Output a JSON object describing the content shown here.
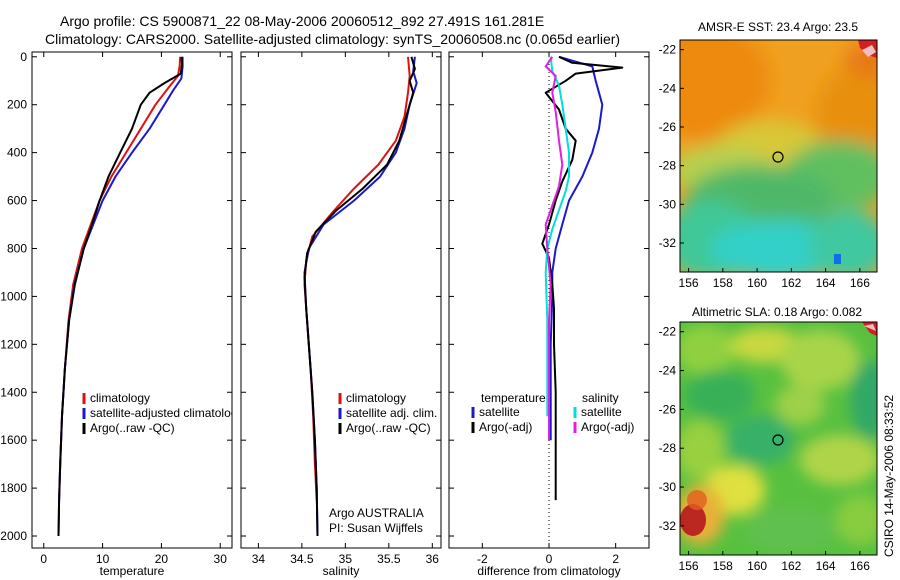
{
  "header": {
    "line1": "Argo profile: CS 5900871_22 08-May-2006 20060512_892 27.491S 161.281E",
    "line2": "Climatology: CARS2000. Satellite-adjusted climatology: synTS_20060508.nc (0.065d earlier)"
  },
  "credit": "CSIRO 14-May-2006 08:33:52",
  "colors": {
    "red": "#e01010",
    "blue": "#1a1acc",
    "black": "#000000",
    "cyan": "#00dede",
    "magenta": "#e020e0"
  },
  "chart_data": [
    {
      "type": "line",
      "panel": "temperature",
      "xlabel": "temperature",
      "ylabel": "",
      "xlim": [
        -2,
        32
      ],
      "ylim": [
        2050,
        -20
      ],
      "y_reversed": true,
      "xticks": [
        0,
        10,
        20,
        30
      ],
      "yticks": [
        0,
        200,
        400,
        600,
        800,
        1000,
        1200,
        1400,
        1600,
        1800,
        2000
      ],
      "legend": [
        "climatology",
        "satellite-adjusted climatology",
        "Argo(..raw -QC)"
      ],
      "series": [
        {
          "name": "climatology",
          "color": "red",
          "points": [
            [
              23.2,
              0
            ],
            [
              23.1,
              40
            ],
            [
              22.8,
              80
            ],
            [
              21.5,
              120
            ],
            [
              19.0,
              200
            ],
            [
              16.5,
              300
            ],
            [
              14.0,
              400
            ],
            [
              11.5,
              500
            ],
            [
              9.5,
              600
            ],
            [
              8.0,
              700
            ],
            [
              6.5,
              800
            ],
            [
              5.0,
              950
            ],
            [
              4.2,
              1100
            ],
            [
              3.6,
              1300
            ],
            [
              3.1,
              1500
            ],
            [
              2.8,
              1700
            ],
            [
              2.6,
              1850
            ]
          ]
        },
        {
          "name": "satellite-adjusted climatology",
          "color": "blue",
          "points": [
            [
              23.6,
              0
            ],
            [
              23.6,
              40
            ],
            [
              23.4,
              90
            ],
            [
              22.0,
              140
            ],
            [
              20.5,
              200
            ],
            [
              18.0,
              300
            ],
            [
              15.0,
              400
            ],
            [
              12.2,
              500
            ],
            [
              10.0,
              600
            ],
            [
              8.4,
              700
            ],
            [
              6.8,
              800
            ],
            [
              5.2,
              950
            ],
            [
              4.3,
              1100
            ],
            [
              3.6,
              1300
            ],
            [
              3.1,
              1500
            ],
            [
              2.8,
              1700
            ],
            [
              2.6,
              1850
            ],
            [
              2.5,
              2000
            ]
          ]
        },
        {
          "name": "Argo(..raw -QC)",
          "color": "black",
          "points": [
            [
              23.4,
              0
            ],
            [
              23.5,
              30
            ],
            [
              23.3,
              70
            ],
            [
              20.5,
              110
            ],
            [
              18.0,
              150
            ],
            [
              16.5,
              200
            ],
            [
              15.0,
              300
            ],
            [
              13.0,
              400
            ],
            [
              11.0,
              500
            ],
            [
              9.5,
              600
            ],
            [
              8.2,
              700
            ],
            [
              6.8,
              800
            ],
            [
              5.3,
              950
            ],
            [
              4.3,
              1100
            ],
            [
              3.6,
              1300
            ],
            [
              3.1,
              1500
            ],
            [
              2.8,
              1700
            ],
            [
              2.6,
              1850
            ],
            [
              2.5,
              2000
            ]
          ]
        }
      ]
    },
    {
      "type": "line",
      "panel": "salinity",
      "xlabel": "salinity",
      "ylabel": "",
      "xlim": [
        33.8,
        36.1
      ],
      "ylim": [
        2050,
        -20
      ],
      "y_reversed": true,
      "xticks": [
        34,
        34.5,
        35,
        35.5,
        36
      ],
      "legend": [
        "climatology",
        "satellite adj. clim.",
        "Argo(..raw -QC)"
      ],
      "annotation": [
        "Argo AUSTRALIA",
        "PI: Susan Wijffels"
      ],
      "series": [
        {
          "name": "climatology",
          "color": "red",
          "points": [
            [
              35.72,
              0
            ],
            [
              35.74,
              80
            ],
            [
              35.72,
              150
            ],
            [
              35.68,
              250
            ],
            [
              35.58,
              350
            ],
            [
              35.38,
              450
            ],
            [
              35.1,
              550
            ],
            [
              34.85,
              650
            ],
            [
              34.62,
              750
            ],
            [
              34.55,
              850
            ],
            [
              34.53,
              950
            ],
            [
              34.56,
              1100
            ],
            [
              34.6,
              1300
            ],
            [
              34.63,
              1500
            ],
            [
              34.65,
              1700
            ],
            [
              34.67,
              1850
            ]
          ]
        },
        {
          "name": "satellite adj. clim.",
          "color": "blue",
          "points": [
            [
              35.8,
              0
            ],
            [
              35.78,
              60
            ],
            [
              35.82,
              110
            ],
            [
              35.74,
              200
            ],
            [
              35.68,
              300
            ],
            [
              35.58,
              400
            ],
            [
              35.4,
              500
            ],
            [
              35.1,
              600
            ],
            [
              34.75,
              700
            ],
            [
              34.58,
              800
            ],
            [
              34.53,
              900
            ],
            [
              34.55,
              1050
            ],
            [
              34.58,
              1200
            ],
            [
              34.62,
              1400
            ],
            [
              34.65,
              1600
            ],
            [
              34.67,
              1800
            ],
            [
              34.68,
              2000
            ]
          ]
        },
        {
          "name": "Argo(..raw -QC)",
          "color": "black",
          "points": [
            [
              35.76,
              0
            ],
            [
              35.8,
              50
            ],
            [
              35.74,
              100
            ],
            [
              35.78,
              150
            ],
            [
              35.7,
              250
            ],
            [
              35.62,
              350
            ],
            [
              35.48,
              450
            ],
            [
              35.2,
              550
            ],
            [
              34.9,
              640
            ],
            [
              34.66,
              730
            ],
            [
              34.56,
              820
            ],
            [
              34.53,
              920
            ],
            [
              34.55,
              1050
            ],
            [
              34.58,
              1200
            ],
            [
              34.62,
              1400
            ],
            [
              34.65,
              1600
            ],
            [
              34.67,
              1800
            ],
            [
              34.68,
              2000
            ]
          ]
        }
      ]
    },
    {
      "type": "line",
      "panel": "difference",
      "xlabel": "difference from climatology",
      "ylabel": "",
      "xlim": [
        -3,
        3
      ],
      "ylim": [
        2050,
        -20
      ],
      "y_reversed": true,
      "xticks": [
        -2,
        0,
        2
      ],
      "zero_line": 0,
      "legend_groups": [
        {
          "title": "temperature",
          "entries": [
            "satellite",
            "Argo(-adj)"
          ]
        },
        {
          "title": "salinity",
          "entries": [
            "satellite",
            "Argo(-adj)"
          ]
        }
      ],
      "series": [
        {
          "name": "temperature satellite",
          "color": "blue",
          "points": [
            [
              0.3,
              0
            ],
            [
              1.3,
              40
            ],
            [
              1.4,
              100
            ],
            [
              1.6,
              200
            ],
            [
              1.5,
              300
            ],
            [
              1.3,
              400
            ],
            [
              1.0,
              500
            ],
            [
              0.6,
              600
            ],
            [
              0.4,
              700
            ],
            [
              0.2,
              800
            ],
            [
              0.1,
              900
            ],
            [
              0.1,
              1000
            ],
            [
              0.05,
              1200
            ],
            [
              0.05,
              1400
            ],
            [
              0.05,
              1600
            ]
          ]
        },
        {
          "name": "temperature Argo(-adj)",
          "color": "black",
          "points": [
            [
              0.3,
              0
            ],
            [
              0.7,
              25
            ],
            [
              2.2,
              45
            ],
            [
              0.8,
              70
            ],
            [
              0.5,
              100
            ],
            [
              -0.1,
              150
            ],
            [
              0.3,
              220
            ],
            [
              0.5,
              300
            ],
            [
              0.8,
              350
            ],
            [
              0.7,
              430
            ],
            [
              0.4,
              520
            ],
            [
              0.2,
              600
            ],
            [
              0.0,
              700
            ],
            [
              -0.2,
              780
            ],
            [
              0.0,
              840
            ],
            [
              0.1,
              950
            ],
            [
              0.15,
              1050
            ],
            [
              0.15,
              1200
            ],
            [
              0.2,
              1400
            ],
            [
              0.2,
              1600
            ],
            [
              0.2,
              1850
            ]
          ]
        },
        {
          "name": "salinity satellite",
          "color": "cyan",
          "points": [
            [
              0.05,
              0
            ],
            [
              0.1,
              60
            ],
            [
              0.3,
              120
            ],
            [
              0.4,
              200
            ],
            [
              0.5,
              300
            ],
            [
              0.6,
              400
            ],
            [
              0.6,
              500
            ],
            [
              0.5,
              560
            ],
            [
              0.3,
              640
            ],
            [
              0.1,
              720
            ],
            [
              -0.05,
              800
            ],
            [
              -0.1,
              900
            ],
            [
              -0.05,
              1100
            ],
            [
              -0.05,
              1300
            ],
            [
              -0.05,
              1500
            ]
          ]
        },
        {
          "name": "salinity Argo(-adj)",
          "color": "magenta",
          "points": [
            [
              0.1,
              0
            ],
            [
              -0.1,
              40
            ],
            [
              0.2,
              80
            ],
            [
              0.1,
              150
            ],
            [
              0.2,
              230
            ],
            [
              0.3,
              350
            ],
            [
              0.4,
              450
            ],
            [
              0.3,
              540
            ],
            [
              0.1,
              620
            ],
            [
              -0.1,
              700
            ],
            [
              -0.05,
              800
            ],
            [
              0.05,
              950
            ],
            [
              0.0,
              1100
            ],
            [
              0.0,
              1300
            ],
            [
              0.0,
              1600
            ]
          ]
        }
      ]
    },
    {
      "type": "heatmap",
      "panel": "sst_map",
      "title": "AMSR-E SST: 23.4 Argo: 23.5",
      "xlim": [
        155.5,
        167
      ],
      "ylim": [
        -33.5,
        -21.5
      ],
      "xticks": [
        156,
        158,
        160,
        162,
        164,
        166
      ],
      "yticks": [
        -22,
        -24,
        -26,
        -28,
        -30,
        -32
      ],
      "float_position": [
        161.281,
        -27.491
      ]
    },
    {
      "type": "heatmap",
      "panel": "sla_map",
      "title": "Altimetric SLA: 0.18 Argo: 0.082",
      "xlim": [
        155.5,
        167
      ],
      "ylim": [
        -33.5,
        -21.5
      ],
      "xticks": [
        156,
        158,
        160,
        162,
        164,
        166
      ],
      "yticks": [
        -22,
        -24,
        -26,
        -28,
        -30,
        -32
      ],
      "float_position": [
        161.281,
        -27.491
      ]
    }
  ]
}
